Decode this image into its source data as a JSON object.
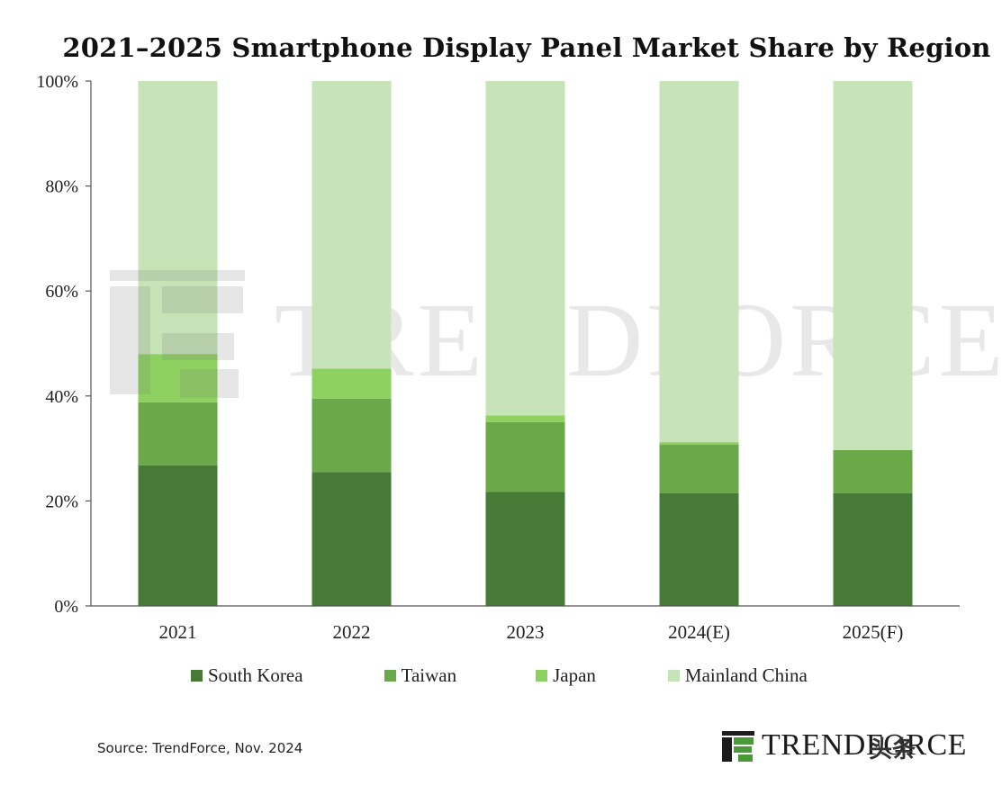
{
  "chart_data": {
    "type": "bar",
    "stacked": true,
    "title": "2021–2025 Smartphone Display Panel Market Share by Region",
    "categories": [
      "2021",
      "2022",
      "2023",
      "2024(E)",
      "2025(F)"
    ],
    "series": [
      {
        "name": "South Korea",
        "values": [
          26.8,
          25.5,
          21.7,
          21.5,
          21.5
        ]
      },
      {
        "name": "Taiwan",
        "values": [
          12.0,
          14.0,
          13.3,
          9.2,
          8.2
        ]
      },
      {
        "name": "Japan",
        "values": [
          9.2,
          5.7,
          1.3,
          0.5,
          0.0
        ]
      },
      {
        "name": "Mainland China",
        "values": [
          52.0,
          54.8,
          63.7,
          68.8,
          70.3
        ]
      }
    ],
    "ylim": [
      0,
      100
    ],
    "yticks": [
      "0%",
      "20%",
      "40%",
      "60%",
      "80%",
      "100%"
    ],
    "xlabel": "",
    "ylabel": "",
    "grid": false,
    "legend_position": "bottom"
  },
  "colors": {
    "South Korea": "#477a36",
    "Taiwan": "#6ba84a",
    "Japan": "#8fd160",
    "Mainland China": "#c7e3b8"
  },
  "source": "Source: TrendForce, Nov. 2024",
  "logo": {
    "text": "TRENDFORCE"
  },
  "watermark": {
    "text": "TRENDFORCE",
    "corner": "头条"
  }
}
